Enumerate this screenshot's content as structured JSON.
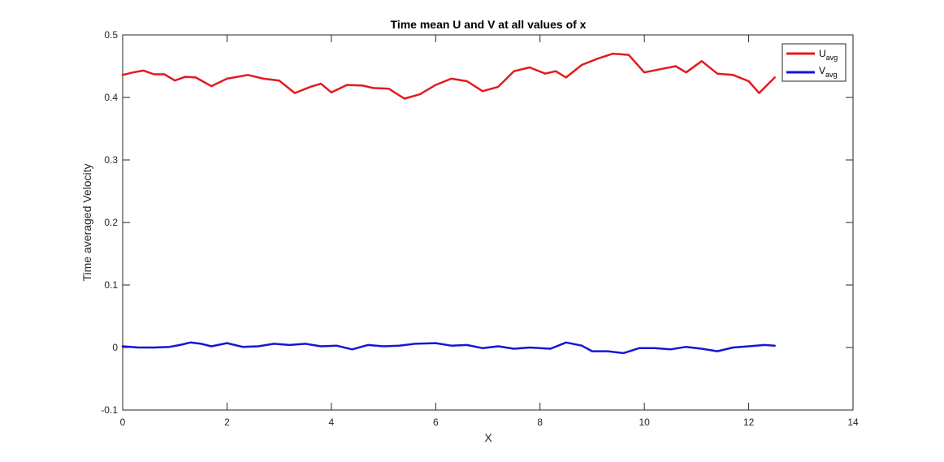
{
  "chart_data": {
    "type": "line",
    "title": "Time mean U and V at all values of x",
    "xlabel": "X",
    "ylabel": "Time averaged Velocity",
    "xlim": [
      0,
      14
    ],
    "ylim": [
      -0.1,
      0.5
    ],
    "xticks": [
      "0",
      "2",
      "4",
      "6",
      "8",
      "10",
      "12",
      "14"
    ],
    "yticks": [
      "-0.1",
      "0",
      "0.1",
      "0.2",
      "0.3",
      "0.4",
      "0.5"
    ],
    "grid": false,
    "legend_position": "top-right",
    "series": [
      {
        "name": "U",
        "name_subscript": "avg",
        "color": "#e31a1c",
        "x": [
          0,
          0.2,
          0.4,
          0.6,
          0.8,
          1.0,
          1.2,
          1.4,
          1.7,
          2.0,
          2.2,
          2.4,
          2.7,
          3.0,
          3.3,
          3.6,
          3.8,
          4.0,
          4.3,
          4.6,
          4.8,
          5.1,
          5.4,
          5.7,
          6.0,
          6.3,
          6.6,
          6.9,
          7.2,
          7.5,
          7.8,
          8.1,
          8.3,
          8.5,
          8.8,
          9.1,
          9.4,
          9.7,
          10.0,
          10.3,
          10.6,
          10.8,
          11.1,
          11.4,
          11.7,
          12.0,
          12.2,
          12.5
        ],
        "y": [
          0.436,
          0.44,
          0.443,
          0.437,
          0.437,
          0.427,
          0.433,
          0.432,
          0.418,
          0.43,
          0.433,
          0.436,
          0.43,
          0.427,
          0.407,
          0.417,
          0.422,
          0.408,
          0.42,
          0.419,
          0.415,
          0.414,
          0.398,
          0.405,
          0.42,
          0.43,
          0.426,
          0.41,
          0.417,
          0.442,
          0.448,
          0.438,
          0.442,
          0.432,
          0.452,
          0.462,
          0.47,
          0.468,
          0.44,
          0.445,
          0.45,
          0.44,
          0.458,
          0.438,
          0.436,
          0.426,
          0.407,
          0.432
        ]
      },
      {
        "name": "V",
        "name_subscript": "avg",
        "color": "#1515d6",
        "x": [
          0,
          0.3,
          0.6,
          0.9,
          1.1,
          1.3,
          1.5,
          1.7,
          2.0,
          2.3,
          2.6,
          2.9,
          3.2,
          3.5,
          3.8,
          4.1,
          4.4,
          4.7,
          5.0,
          5.3,
          5.6,
          6.0,
          6.3,
          6.6,
          6.9,
          7.2,
          7.5,
          7.8,
          8.2,
          8.5,
          8.8,
          9.0,
          9.3,
          9.6,
          9.9,
          10.2,
          10.5,
          10.8,
          11.1,
          11.4,
          11.7,
          12.0,
          12.3,
          12.5
        ],
        "y": [
          0.002,
          0.0,
          0.0,
          0.001,
          0.004,
          0.008,
          0.006,
          0.002,
          0.007,
          0.001,
          0.002,
          0.006,
          0.004,
          0.006,
          0.002,
          0.003,
          -0.003,
          0.004,
          0.002,
          0.003,
          0.006,
          0.007,
          0.003,
          0.004,
          -0.001,
          0.002,
          -0.002,
          0.0,
          -0.002,
          0.008,
          0.003,
          -0.006,
          -0.006,
          -0.009,
          -0.001,
          -0.001,
          -0.003,
          0.001,
          -0.002,
          -0.006,
          0.0,
          0.002,
          0.004,
          0.003
        ]
      }
    ]
  }
}
